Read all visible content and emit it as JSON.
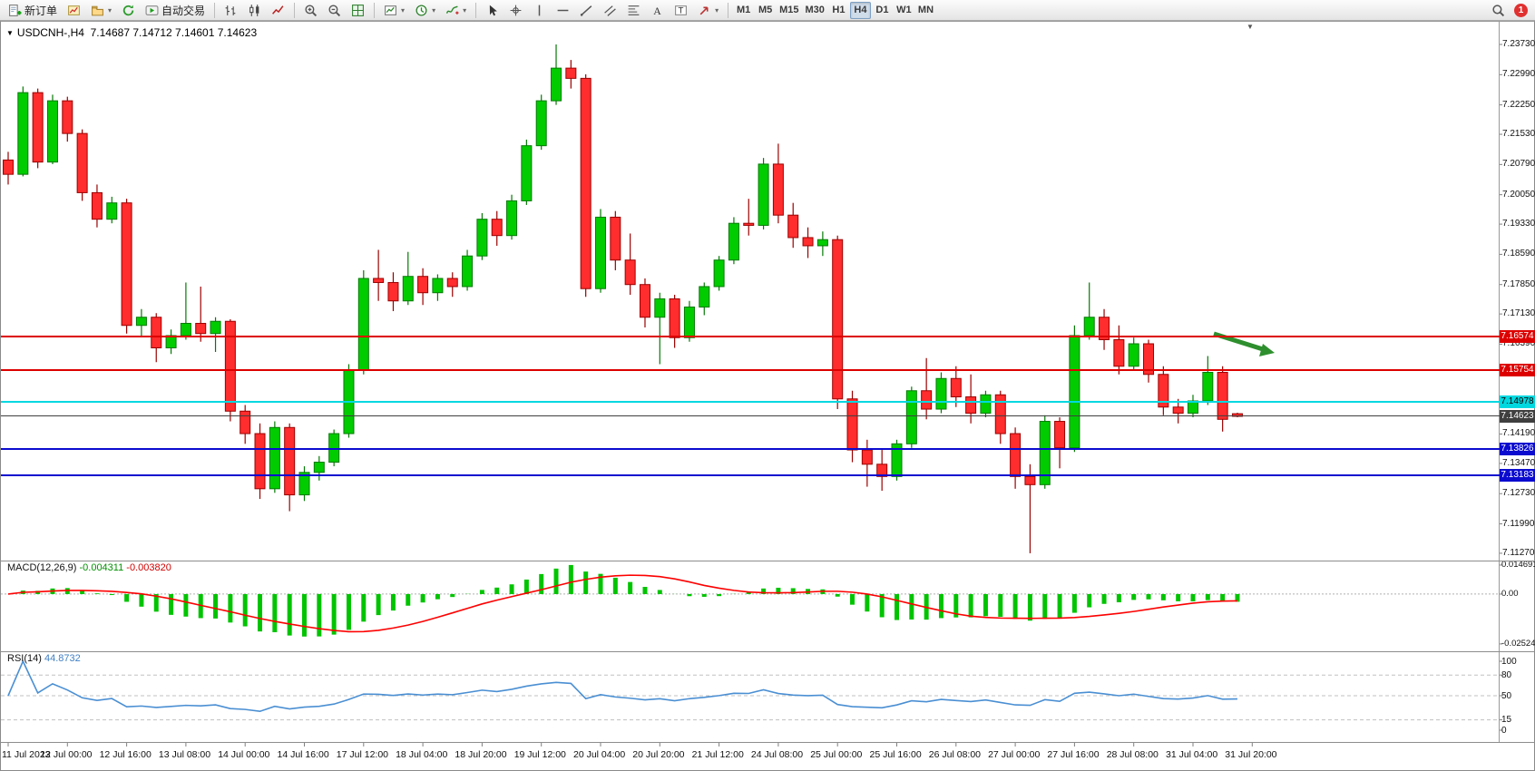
{
  "toolbar": {
    "new_order_label": "新订单",
    "autotrading_label": "自动交易",
    "timeframes": [
      "M1",
      "M5",
      "M15",
      "M30",
      "H1",
      "H4",
      "D1",
      "W1",
      "MN"
    ],
    "active_timeframe": "H4",
    "notification_count": "1",
    "left_icons": [
      "new-order-icon",
      "new-chart-icon",
      "profiles-icon",
      "refresh-icon",
      "autotrading-icon"
    ],
    "chart_icons": [
      "bar-chart-icon",
      "candlestick-icon",
      "line-chart-icon",
      "zoom-in-icon",
      "zoom-out-icon",
      "tile-windows-icon",
      "new-chart-dropdown-icon",
      "periods-dropdown-icon",
      "indicators-dropdown-icon"
    ],
    "drawing_icons": [
      "cursor-icon",
      "crosshair-icon",
      "vertical-line-icon",
      "horizontal-line-icon",
      "trendline-icon",
      "channel-icon",
      "fibonacci-icon",
      "text-icon",
      "text-label-icon",
      "arrows-dropdown-icon"
    ],
    "right_icons": [
      "search-icon",
      "notification-badge"
    ]
  },
  "chart": {
    "symbol_period": "USDCNH-,H4",
    "ohlc_quote": "7.14687 7.14712 7.14601 7.14623",
    "collapse_marker": "▼",
    "objects": [
      {
        "type": "trend-arrow",
        "color": "#2e8f2e",
        "direction": "down-right"
      }
    ]
  },
  "price_scale": {
    "labels": [
      "7.23730",
      "7.22990",
      "7.22250",
      "7.21530",
      "7.20790",
      "7.20050",
      "7.19330",
      "7.18590",
      "7.17850",
      "7.17130",
      "7.16390",
      "7.15650",
      "7.14910",
      "7.14190",
      "7.13470",
      "7.12730",
      "7.11990",
      "7.11270"
    ]
  },
  "hlines": [
    {
      "name": "resistance-line-1",
      "label": "7.16574",
      "price": 7.16574,
      "color": "#dd0000",
      "text_color": "#ffffff",
      "width": 2
    },
    {
      "name": "resistance-line-2",
      "label": "7.15754",
      "price": 7.15754,
      "color": "#dd0000",
      "text_color": "#ffffff",
      "width": 2
    },
    {
      "name": "support-line-cyan",
      "label": "7.14978",
      "price": 7.14978,
      "color": "#00d8e0",
      "text_color": "#000000",
      "width": 2
    },
    {
      "name": "current-price-line",
      "label": "7.14623",
      "price": 7.14623,
      "color": "#3f3f3f",
      "text_color": "#ffffff",
      "width": 1
    },
    {
      "name": "support-line-blue-1",
      "label": "7.13826",
      "price": 7.13826,
      "color": "#0b0bcf",
      "text_color": "#ffffff",
      "width": 2
    },
    {
      "name": "support-line-blue-2",
      "label": "7.13183",
      "price": 7.13183,
      "color": "#0b0bcf",
      "text_color": "#ffffff",
      "width": 2
    }
  ],
  "indicators": {
    "macd": {
      "title": "MACD(12,26,9)",
      "value_main": "-0.004311",
      "value_signal": "-0.003820",
      "params": [
        12,
        26,
        9
      ],
      "scale_labels": [
        "0.014691",
        "0.00",
        "-0.02524"
      ],
      "histogram_color": "#00c400",
      "signal_color": "#ff0000"
    },
    "rsi": {
      "title": "RSI(14)",
      "value": "44.8732",
      "period": 14,
      "scale_labels": [
        "100",
        "80",
        "50",
        "15",
        "0"
      ],
      "levels": [
        80,
        50,
        15
      ],
      "line_color": "#4a8fd3"
    }
  },
  "chart_data": {
    "type": "candlestick",
    "symbol": "USDCNH-",
    "period": "H4",
    "bull_color": "#00cc00",
    "bear_color": "#ff2d2d",
    "bull_outline": "#057a05",
    "bear_outline": "#9b0000",
    "y_range": [
      7.105,
      7.2428
    ],
    "bars_per_label": 4,
    "x_labels": [
      "11 Jul 2023",
      "12 Jul 00:00",
      "12 Jul 16:00",
      "13 Jul 08:00",
      "14 Jul 00:00",
      "14 Jul 16:00",
      "17 Jul 12:00",
      "18 Jul 04:00",
      "18 Jul 20:00",
      "19 Jul 12:00",
      "20 Jul 04:00",
      "20 Jul 20:00",
      "21 Jul 12:00",
      "24 Jul 08:00",
      "25 Jul 00:00",
      "25 Jul 16:00",
      "26 Jul 08:00",
      "27 Jul 00:00",
      "27 Jul 16:00",
      "28 Jul 08:00",
      "31 Jul 04:00",
      "31 Jul 20:00"
    ],
    "ohlc": [
      [
        7.209,
        7.211,
        7.203,
        7.2055
      ],
      [
        7.2055,
        7.227,
        7.205,
        7.2255
      ],
      [
        7.2255,
        7.2265,
        7.207,
        7.2085
      ],
      [
        7.2085,
        7.225,
        7.208,
        7.2235
      ],
      [
        7.2235,
        7.2245,
        7.2135,
        7.2155
      ],
      [
        7.2155,
        7.2165,
        7.199,
        7.201
      ],
      [
        7.201,
        7.203,
        7.1925,
        7.1945
      ],
      [
        7.1945,
        7.2,
        7.1935,
        7.1985
      ],
      [
        7.1985,
        7.1995,
        7.1665,
        7.1685
      ],
      [
        7.1685,
        7.1725,
        7.166,
        7.1705
      ],
      [
        7.1705,
        7.1715,
        7.1595,
        7.163
      ],
      [
        7.163,
        7.1675,
        7.1615,
        7.166
      ],
      [
        7.166,
        7.179,
        7.165,
        7.169
      ],
      [
        7.169,
        7.178,
        7.1645,
        7.1665
      ],
      [
        7.1665,
        7.1705,
        7.162,
        7.1695
      ],
      [
        7.1695,
        7.17,
        7.145,
        7.1475
      ],
      [
        7.1475,
        7.149,
        7.1395,
        7.142
      ],
      [
        7.142,
        7.1445,
        7.126,
        7.1285
      ],
      [
        7.1285,
        7.145,
        7.1275,
        7.1435
      ],
      [
        7.1435,
        7.1445,
        7.123,
        7.127
      ],
      [
        7.127,
        7.134,
        7.1255,
        7.1325
      ],
      [
        7.1325,
        7.1365,
        7.1305,
        7.135
      ],
      [
        7.135,
        7.143,
        7.134,
        7.142
      ],
      [
        7.142,
        7.159,
        7.141,
        7.1575
      ],
      [
        7.1575,
        7.182,
        7.1565,
        7.18
      ],
      [
        7.18,
        7.187,
        7.1745,
        7.179
      ],
      [
        7.179,
        7.1815,
        7.172,
        7.1745
      ],
      [
        7.1745,
        7.1865,
        7.1735,
        7.1805
      ],
      [
        7.1805,
        7.1825,
        7.1735,
        7.1765
      ],
      [
        7.1765,
        7.181,
        7.1745,
        7.18
      ],
      [
        7.18,
        7.1815,
        7.1755,
        7.178
      ],
      [
        7.178,
        7.187,
        7.177,
        7.1855
      ],
      [
        7.1855,
        7.196,
        7.1845,
        7.1945
      ],
      [
        7.1945,
        7.1965,
        7.188,
        7.1905
      ],
      [
        7.1905,
        7.2005,
        7.1895,
        7.199
      ],
      [
        7.199,
        7.214,
        7.198,
        7.2125
      ],
      [
        7.2125,
        7.225,
        7.2115,
        7.2235
      ],
      [
        7.2235,
        7.2373,
        7.2225,
        7.2315
      ],
      [
        7.2315,
        7.2335,
        7.2265,
        7.229
      ],
      [
        7.229,
        7.23,
        7.1755,
        7.1775
      ],
      [
        7.1775,
        7.197,
        7.1765,
        7.195
      ],
      [
        7.195,
        7.1965,
        7.182,
        7.1845
      ],
      [
        7.1845,
        7.191,
        7.176,
        7.1785
      ],
      [
        7.1785,
        7.18,
        7.168,
        7.1705
      ],
      [
        7.1705,
        7.1765,
        7.159,
        7.175
      ],
      [
        7.175,
        7.176,
        7.163,
        7.1655
      ],
      [
        7.1655,
        7.1745,
        7.1645,
        7.173
      ],
      [
        7.173,
        7.179,
        7.171,
        7.178
      ],
      [
        7.178,
        7.1855,
        7.177,
        7.1845
      ],
      [
        7.1845,
        7.195,
        7.1835,
        7.1935
      ],
      [
        7.1935,
        7.1995,
        7.1905,
        7.193
      ],
      [
        7.193,
        7.2095,
        7.192,
        7.208
      ],
      [
        7.208,
        7.213,
        7.1935,
        7.1955
      ],
      [
        7.1955,
        7.1985,
        7.1875,
        7.19
      ],
      [
        7.19,
        7.1925,
        7.185,
        7.188
      ],
      [
        7.188,
        7.1915,
        7.1855,
        7.1895
      ],
      [
        7.1895,
        7.1905,
        7.148,
        7.1505
      ],
      [
        7.1505,
        7.1525,
        7.135,
        7.138
      ],
      [
        7.138,
        7.1405,
        7.129,
        7.1345
      ],
      [
        7.1345,
        7.138,
        7.128,
        7.1315
      ],
      [
        7.1315,
        7.1405,
        7.1305,
        7.1395
      ],
      [
        7.1395,
        7.1535,
        7.1385,
        7.1525
      ],
      [
        7.1525,
        7.1605,
        7.1455,
        7.148
      ],
      [
        7.148,
        7.157,
        7.147,
        7.1555
      ],
      [
        7.1555,
        7.1585,
        7.1485,
        7.151
      ],
      [
        7.151,
        7.1565,
        7.1445,
        7.147
      ],
      [
        7.147,
        7.1525,
        7.146,
        7.1515
      ],
      [
        7.1515,
        7.1525,
        7.1395,
        7.142
      ],
      [
        7.142,
        7.1435,
        7.1285,
        7.1315
      ],
      [
        7.1315,
        7.1345,
        7.1127,
        7.1295
      ],
      [
        7.1295,
        7.1465,
        7.1285,
        7.145
      ],
      [
        7.145,
        7.146,
        7.1335,
        7.1385
      ],
      [
        7.1385,
        7.1685,
        7.1375,
        7.166
      ],
      [
        7.166,
        7.179,
        7.165,
        7.1705
      ],
      [
        7.1705,
        7.1725,
        7.1625,
        7.165
      ],
      [
        7.165,
        7.1685,
        7.1565,
        7.1585
      ],
      [
        7.1585,
        7.1655,
        7.1575,
        7.164
      ],
      [
        7.164,
        7.165,
        7.1545,
        7.1565
      ],
      [
        7.1565,
        7.1585,
        7.1465,
        7.1485
      ],
      [
        7.1485,
        7.1505,
        7.1445,
        7.147
      ],
      [
        7.147,
        7.1515,
        7.146,
        7.15
      ],
      [
        7.15,
        7.161,
        7.149,
        7.157
      ],
      [
        7.157,
        7.1585,
        7.1425,
        7.1455
      ],
      [
        7.14687,
        7.14712,
        7.14601,
        7.14623
      ]
    ]
  }
}
